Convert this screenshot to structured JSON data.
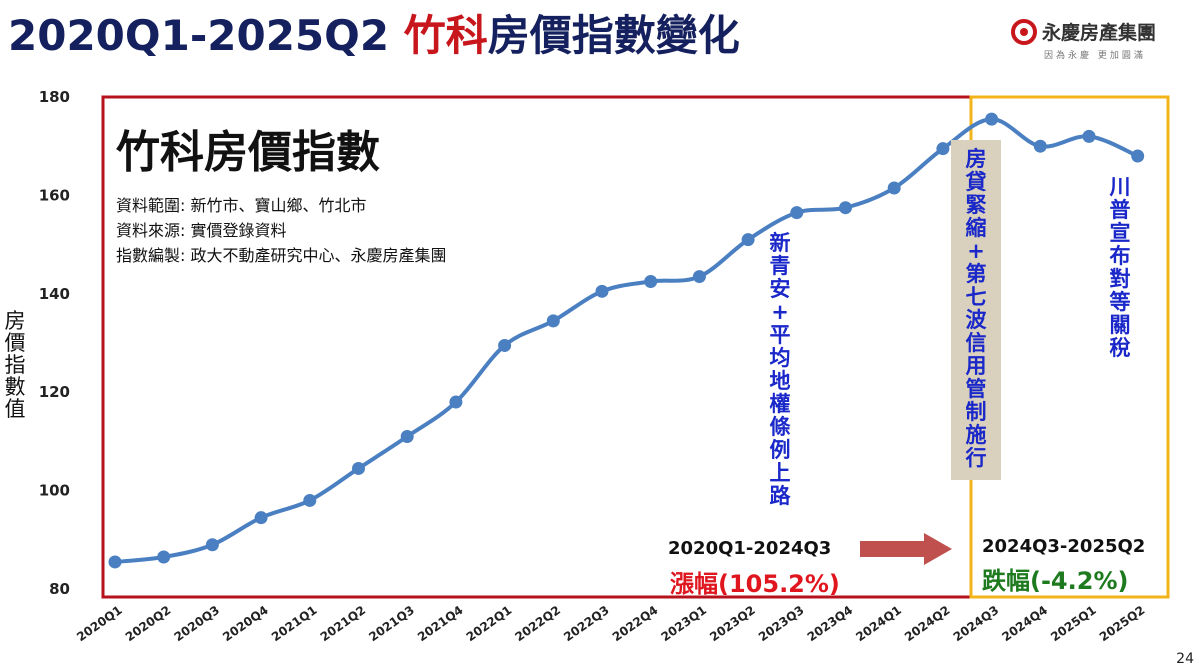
{
  "header": {
    "title_main": "2020Q1-2025Q2 ",
    "title_highlight": "竹科",
    "title_rest": "房價指數變化"
  },
  "logo": {
    "name": "永慶房產集團",
    "tagline": "因為永慶 更加圓滿",
    "color": "#c8161d"
  },
  "y_axis_label": "房價指數值",
  "page_number": "24",
  "inset": {
    "title": "竹科房價指數",
    "lines": [
      "資料範圍: 新竹市、寶山鄉、竹北市",
      "資料來源: 實價登錄資料",
      "指數編製: 政大不動產研究中心、永慶房產集團"
    ]
  },
  "annotations": {
    "policy_1": "新青安+平均地權條例上路",
    "policy_2": "房貸緊縮+第七波信用管制施行",
    "policy_3": "川普宣布對等關稅"
  },
  "periods": {
    "rise_period": "2020Q1-2024Q3",
    "rise_change": "漲幅(105.2%)",
    "fall_period": "2024Q3-2025Q2",
    "fall_change": "跌幅(-4.2%)"
  },
  "colors": {
    "line": "#4a7fc1",
    "rise_box": "#b5121b",
    "fall_box": "#f3b41b",
    "rise_text": "#e0161f",
    "fall_text": "#1e7a1e",
    "title": "#15205e",
    "annotation": "#1a27c9"
  },
  "chart_data": {
    "type": "line",
    "title": "",
    "xlabel": "",
    "ylabel": "房價指數值",
    "ylim": [
      80,
      180
    ],
    "yticks": [
      80,
      100,
      120,
      140,
      160,
      180
    ],
    "grid": false,
    "categories": [
      "2020Q1",
      "2020Q2",
      "2020Q3",
      "2020Q4",
      "2021Q1",
      "2021Q2",
      "2021Q3",
      "2021Q4",
      "2022Q1",
      "2022Q2",
      "2022Q3",
      "2022Q4",
      "2023Q1",
      "2023Q2",
      "2023Q3",
      "2023Q4",
      "2024Q1",
      "2024Q2",
      "2024Q3",
      "2024Q4",
      "2025Q1",
      "2025Q2"
    ],
    "series": [
      {
        "values": [
          85.5,
          86.5,
          89,
          94.5,
          98,
          104.5,
          111,
          118,
          129.5,
          134.5,
          140.5,
          142.5,
          143.5,
          151,
          156.5,
          157.5,
          161.5,
          169.5,
          175.5,
          170,
          172,
          168
        ]
      }
    ]
  }
}
